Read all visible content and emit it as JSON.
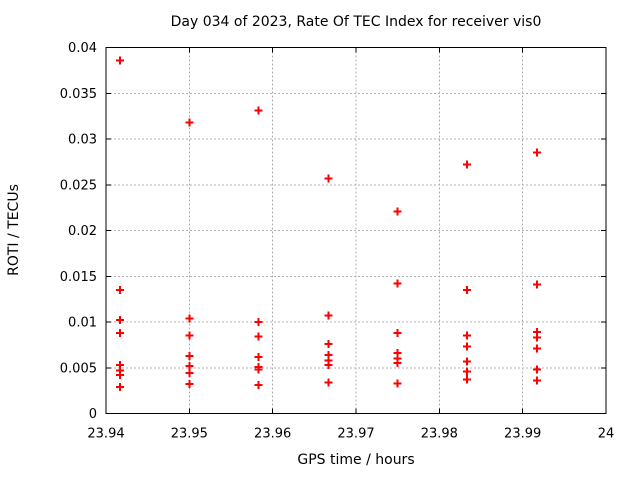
{
  "page": {
    "background": "#ffffff"
  },
  "chart_data": {
    "type": "scatter",
    "title": "Day 034 of 2023, Rate Of TEC Index for receiver vis0",
    "xlabel": "GPS time / hours",
    "ylabel": "ROTI / TECUs",
    "xlim": [
      23.94,
      24
    ],
    "ylim": [
      0,
      0.04
    ],
    "xticks": {
      "values": [
        23.94,
        23.95,
        23.96,
        23.97,
        23.98,
        23.99,
        24
      ],
      "labels": [
        "23.94",
        "23.95",
        "23.96",
        "23.97",
        "23.98",
        "23.99",
        "24"
      ]
    },
    "yticks": {
      "values": [
        0,
        0.005,
        0.01,
        0.015,
        0.02,
        0.025,
        0.03,
        0.035,
        0.04
      ],
      "labels": [
        "0",
        "0.005",
        "0.01",
        "0.015",
        "0.02",
        "0.025",
        "0.03",
        "0.035",
        "0.04"
      ]
    },
    "grid": true,
    "legend_position": "none",
    "marker": {
      "shape": "plus",
      "color": "#ff0000",
      "size": 9
    },
    "grid_color": "#b0b0b0",
    "axis_color": "#000000",
    "series": [
      {
        "name": "ROTI",
        "points": [
          [
            23.9417,
            0.0386
          ],
          [
            23.9417,
            0.0135
          ],
          [
            23.9417,
            0.0102
          ],
          [
            23.9417,
            0.0088
          ],
          [
            23.9417,
            0.0053
          ],
          [
            23.9417,
            0.0047
          ],
          [
            23.9417,
            0.0042
          ],
          [
            23.9417,
            0.0029
          ],
          [
            23.95,
            0.0318
          ],
          [
            23.95,
            0.0104
          ],
          [
            23.95,
            0.0085
          ],
          [
            23.95,
            0.0063
          ],
          [
            23.95,
            0.0052
          ],
          [
            23.95,
            0.0044
          ],
          [
            23.95,
            0.0032
          ],
          [
            23.9583,
            0.0331
          ],
          [
            23.9583,
            0.01
          ],
          [
            23.9583,
            0.0084
          ],
          [
            23.9583,
            0.0062
          ],
          [
            23.9583,
            0.0051
          ],
          [
            23.9583,
            0.0048
          ],
          [
            23.9583,
            0.0031
          ],
          [
            23.9667,
            0.0257
          ],
          [
            23.9667,
            0.0107
          ],
          [
            23.9667,
            0.0076
          ],
          [
            23.9667,
            0.0064
          ],
          [
            23.9667,
            0.0058
          ],
          [
            23.9667,
            0.0053
          ],
          [
            23.9667,
            0.0034
          ],
          [
            23.975,
            0.0221
          ],
          [
            23.975,
            0.0142
          ],
          [
            23.975,
            0.0088
          ],
          [
            23.975,
            0.0066
          ],
          [
            23.975,
            0.006
          ],
          [
            23.975,
            0.0055
          ],
          [
            23.975,
            0.0033
          ],
          [
            23.9833,
            0.0272
          ],
          [
            23.9833,
            0.0135
          ],
          [
            23.9833,
            0.0085
          ],
          [
            23.9833,
            0.0073
          ],
          [
            23.9833,
            0.0057
          ],
          [
            23.9833,
            0.0046
          ],
          [
            23.9833,
            0.0037
          ],
          [
            23.9917,
            0.0285
          ],
          [
            23.9917,
            0.0141
          ],
          [
            23.9917,
            0.0089
          ],
          [
            23.9917,
            0.0083
          ],
          [
            23.9917,
            0.0071
          ],
          [
            23.9917,
            0.0048
          ],
          [
            23.9917,
            0.0036
          ]
        ]
      }
    ]
  }
}
